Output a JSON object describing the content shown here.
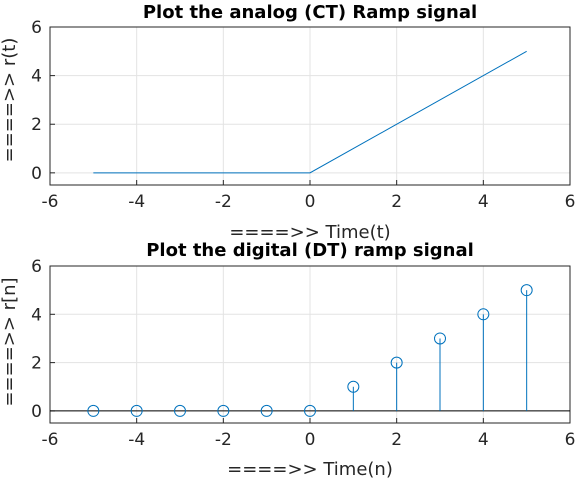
{
  "chart_data": [
    {
      "type": "line",
      "title": "Plot the analog (CT) Ramp signal",
      "xlabel": "====>>  Time(t)",
      "ylabel": "====>>  r(t)",
      "xlim": [
        -6,
        6
      ],
      "ylim": [
        -0.5,
        6
      ],
      "xticks": [
        -6,
        -4,
        -2,
        0,
        2,
        4,
        6
      ],
      "yticks": [
        0,
        2,
        4,
        6
      ],
      "xtick_labels": [
        "-6",
        "-4",
        "-2",
        "0",
        "2",
        "4",
        "6"
      ],
      "ytick_labels": [
        "0",
        "2",
        "4",
        "6"
      ],
      "grid": true,
      "series": [
        {
          "x": [
            -5,
            0,
            5
          ],
          "y": [
            0,
            0,
            5
          ],
          "color": "#0072BD"
        }
      ]
    },
    {
      "type": "stem",
      "title": "Plot the digital (DT) ramp signal",
      "xlabel": "====>>  Time(n)",
      "ylabel": "====>>  r[n]",
      "xlim": [
        -6,
        6
      ],
      "ylim": [
        -0.5,
        6
      ],
      "xticks": [
        -6,
        -4,
        -2,
        0,
        2,
        4,
        6
      ],
      "yticks": [
        0,
        2,
        4,
        6
      ],
      "xtick_labels": [
        "-6",
        "-4",
        "-2",
        "0",
        "2",
        "4",
        "6"
      ],
      "ytick_labels": [
        "0",
        "2",
        "4",
        "6"
      ],
      "grid": true,
      "baseline": 0,
      "series": [
        {
          "x": [
            -5,
            -4,
            -3,
            -2,
            -1,
            0,
            1,
            2,
            3,
            4,
            5
          ],
          "y": [
            0,
            0,
            0,
            0,
            0,
            0,
            1,
            2,
            3,
            4,
            5
          ],
          "color": "#0072BD"
        }
      ]
    }
  ]
}
